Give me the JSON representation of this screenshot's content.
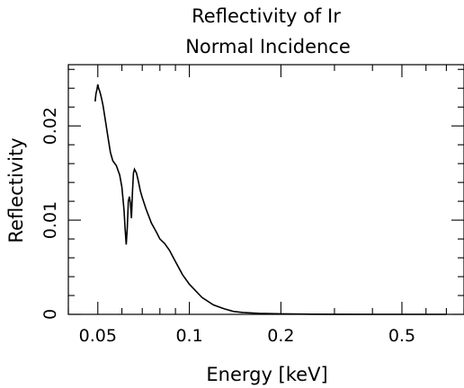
{
  "chart_data": {
    "type": "line",
    "title": "Reflectivity of Ir",
    "subtitle": "Normal Incidence",
    "xlabel": "Energy [keV]",
    "ylabel": "Reflectivity",
    "x_scale": "log",
    "xlim": [
      0.04,
      0.8
    ],
    "ylim": [
      0,
      0.0265
    ],
    "x_ticks": [
      {
        "value": 0.05,
        "label": "0.05"
      },
      {
        "value": 0.1,
        "label": "0.1"
      },
      {
        "value": 0.2,
        "label": "0.2"
      },
      {
        "value": 0.5,
        "label": "0.5"
      }
    ],
    "y_ticks": [
      {
        "value": 0,
        "label": "0"
      },
      {
        "value": 0.01,
        "label": "0.01"
      },
      {
        "value": 0.02,
        "label": "0.02"
      }
    ],
    "grid": false,
    "legend": "none",
    "series": [
      {
        "color": "#000000",
        "x": [
          0.049,
          0.0493,
          0.0497,
          0.05,
          0.0503,
          0.0507,
          0.0512,
          0.052,
          0.053,
          0.054,
          0.055,
          0.056,
          0.0575,
          0.059,
          0.06,
          0.061,
          0.0615,
          0.062,
          0.0625,
          0.063,
          0.0635,
          0.064,
          0.0645,
          0.065,
          0.0655,
          0.066,
          0.067,
          0.068,
          0.069,
          0.07,
          0.072,
          0.075,
          0.078,
          0.08,
          0.083,
          0.086,
          0.09,
          0.095,
          0.1,
          0.11,
          0.12,
          0.13,
          0.14,
          0.15,
          0.17,
          0.2,
          0.25,
          0.3,
          0.4,
          0.5,
          0.6,
          0.7
        ],
        "y": [
          0.0226,
          0.0234,
          0.0239,
          0.0244,
          0.024,
          0.0237,
          0.0232,
          0.0222,
          0.0205,
          0.0188,
          0.0172,
          0.0163,
          0.0158,
          0.0148,
          0.0135,
          0.011,
          0.009,
          0.0074,
          0.0092,
          0.012,
          0.0125,
          0.0118,
          0.0102,
          0.013,
          0.015,
          0.0154,
          0.015,
          0.0141,
          0.0131,
          0.0124,
          0.0112,
          0.0097,
          0.0087,
          0.008,
          0.0075,
          0.0068,
          0.0056,
          0.0042,
          0.0032,
          0.0018,
          0.001,
          0.0006,
          0.0003,
          0.0002,
          0.0001,
          5e-05,
          2e-05,
          1e-05,
          0.0,
          0.0,
          0.0,
          0.0
        ]
      }
    ]
  }
}
